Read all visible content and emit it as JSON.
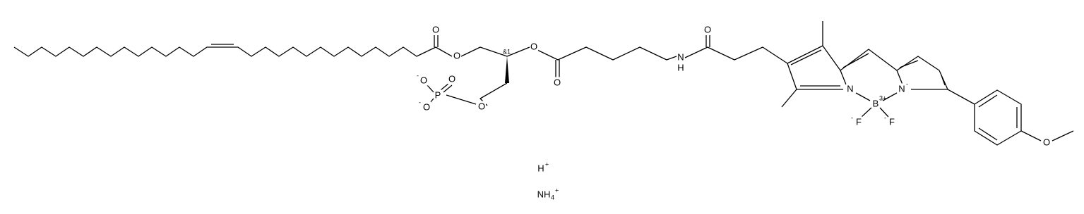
{
  "atoms": [
    {
      "symbol": "O"
    },
    {
      "symbol": "O"
    },
    {
      "symbol": "O"
    },
    {
      "symbol": "O"
    },
    {
      "symbol": "O",
      "charge": "-"
    },
    {
      "symbol": "O"
    },
    {
      "symbol": "P"
    },
    {
      "symbol": "O",
      "charge": "-"
    },
    {
      "symbol": "O"
    },
    {
      "symbol": "N"
    },
    {
      "symbol": "H"
    },
    {
      "symbol": "O"
    },
    {
      "symbol": "N"
    },
    {
      "symbol": "B",
      "charge": "3+"
    },
    {
      "symbol": "N",
      "charge": "-"
    },
    {
      "symbol": "F",
      "charge": "-"
    },
    {
      "symbol": "F",
      "charge": "-"
    },
    {
      "symbol": "O"
    }
  ],
  "stereo_label": "&1",
  "ions": [
    {
      "symbol": "H",
      "charge": "+"
    },
    {
      "symbol": "NH",
      "count": "4",
      "charge": "+"
    }
  ]
}
